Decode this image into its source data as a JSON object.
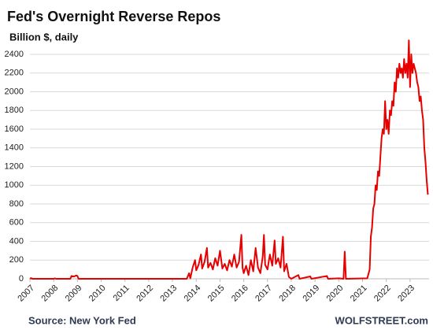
{
  "chart_data": {
    "type": "line",
    "title": "Fed's Overnight Reverse Repos",
    "subtitle": "Billion $, daily",
    "source": "Source: New York Fed",
    "credit": "WOLFSTREET.com",
    "color": "#e60000",
    "grid": true,
    "xlim": [
      2007,
      2023.8
    ],
    "xticks": [
      2007,
      2008,
      2009,
      2010,
      2011,
      2012,
      2013,
      2014,
      2015,
      2016,
      2017,
      2018,
      2019,
      2020,
      2021,
      2022,
      2023
    ],
    "ylim": [
      0,
      2560
    ],
    "yticks": [
      0,
      200,
      400,
      600,
      800,
      1000,
      1200,
      1400,
      1600,
      1800,
      2000,
      2200,
      2400
    ],
    "x": [
      2007.0,
      2007.05,
      2007.1,
      2008.0,
      2008.05,
      2008.1,
      2008.7,
      2008.75,
      2008.85,
      2008.95,
      2009.0,
      2009.05,
      2013.6,
      2013.7,
      2013.75,
      2013.85,
      2013.95,
      2014.0,
      2014.1,
      2014.2,
      2014.25,
      2014.35,
      2014.45,
      2014.5,
      2014.6,
      2014.7,
      2014.8,
      2014.9,
      2015.0,
      2015.1,
      2015.2,
      2015.3,
      2015.4,
      2015.5,
      2015.6,
      2015.7,
      2015.8,
      2015.9,
      2015.95,
      2016.0,
      2016.1,
      2016.2,
      2016.3,
      2016.4,
      2016.5,
      2016.6,
      2016.7,
      2016.8,
      2016.85,
      2016.9,
      2017.0,
      2017.1,
      2017.2,
      2017.3,
      2017.35,
      2017.45,
      2017.55,
      2017.65,
      2017.7,
      2017.8,
      2017.9,
      2018.0,
      2018.3,
      2018.35,
      2018.8,
      2018.85,
      2019.5,
      2019.55,
      2020.0,
      2020.2,
      2020.25,
      2020.3,
      2021.2,
      2021.3,
      2021.35,
      2021.4,
      2021.45,
      2021.5,
      2021.55,
      2021.6,
      2021.65,
      2021.7,
      2021.75,
      2021.8,
      2021.85,
      2021.9,
      2021.95,
      2022.0,
      2022.05,
      2022.1,
      2022.15,
      2022.2,
      2022.25,
      2022.3,
      2022.35,
      2022.4,
      2022.45,
      2022.5,
      2022.55,
      2022.6,
      2022.65,
      2022.7,
      2022.75,
      2022.8,
      2022.85,
      2022.9,
      2022.95,
      2023.0,
      2023.05,
      2023.1,
      2023.15,
      2023.2,
      2023.25,
      2023.3,
      2023.35,
      2023.4,
      2023.45,
      2023.5,
      2023.55,
      2023.6,
      2023.65,
      2023.7,
      2023.75
    ],
    "values": [
      0,
      8,
      0,
      0,
      5,
      0,
      0,
      30,
      25,
      35,
      30,
      0,
      0,
      60,
      5,
      120,
      200,
      90,
      150,
      260,
      110,
      180,
      330,
      120,
      170,
      100,
      220,
      140,
      300,
      110,
      160,
      90,
      200,
      130,
      260,
      120,
      180,
      470,
      120,
      60,
      140,
      40,
      200,
      80,
      330,
      120,
      60,
      240,
      470,
      150,
      100,
      260,
      140,
      410,
      160,
      220,
      120,
      450,
      80,
      160,
      20,
      0,
      40,
      0,
      25,
      0,
      30,
      0,
      5,
      0,
      290,
      0,
      5,
      100,
      450,
      550,
      750,
      800,
      1000,
      950,
      1150,
      1100,
      1300,
      1500,
      1600,
      1550,
      1900,
      1600,
      1700,
      1550,
      1800,
      1750,
      1900,
      1850,
      2100,
      2000,
      2250,
      2150,
      2300,
      2200,
      2250,
      2150,
      2350,
      2200,
      2300,
      2150,
      2550,
      2050,
      2400,
      2200,
      2300,
      2250,
      2200,
      2100,
      2050,
      1900,
      1950,
      1800,
      1700,
      1400,
      1250,
      1050,
      900
    ]
  }
}
